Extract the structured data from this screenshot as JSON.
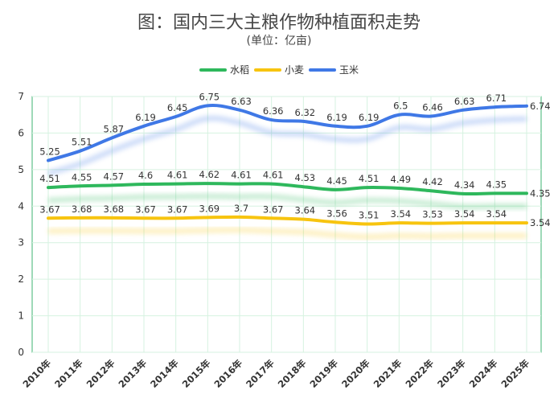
{
  "chart_data": {
    "type": "line",
    "title": "图：国内三大主粮作物种植面积走势",
    "subtitle": "(单位：亿亩)",
    "categories": [
      "2010年",
      "2011年",
      "2012年",
      "2013年",
      "2014年",
      "2015年",
      "2016年",
      "2017年",
      "2018年",
      "2019年",
      "2020年",
      "2021年",
      "2022年",
      "2023年",
      "2024年",
      "2025年"
    ],
    "ylim": [
      0,
      7
    ],
    "yticks": [
      "0",
      "1",
      "2",
      "3",
      "4",
      "5",
      "6",
      "7"
    ],
    "legend_position": "top-center",
    "series": [
      {
        "name": "水稻",
        "color": "#2eb85c",
        "values": [
          4.51,
          4.55,
          4.57,
          4.6,
          4.61,
          4.62,
          4.61,
          4.61,
          4.53,
          4.45,
          4.51,
          4.49,
          4.42,
          4.34,
          4.35,
          4.35
        ]
      },
      {
        "name": "小麦",
        "color": "#f7c40f",
        "values": [
          3.67,
          3.68,
          3.68,
          3.67,
          3.67,
          3.69,
          3.7,
          3.67,
          3.64,
          3.56,
          3.51,
          3.54,
          3.53,
          3.54,
          3.54,
          3.54
        ]
      },
      {
        "name": "玉米",
        "color": "#3f78e6",
        "values": [
          5.25,
          5.51,
          5.87,
          6.19,
          6.45,
          6.75,
          6.63,
          6.36,
          6.32,
          6.19,
          6.19,
          6.5,
          6.46,
          6.63,
          6.71,
          6.74
        ]
      }
    ],
    "data_labels": {
      "水稻": [
        "4.51",
        "4.55",
        "4.57",
        "4.6",
        "4.61",
        "4.62",
        "4.61",
        "4.61",
        "4.53",
        "4.45",
        "4.51",
        "4.49",
        "4.42",
        "4.34",
        "4.35",
        "4.35"
      ],
      "小麦": [
        "3.67",
        "3.68",
        "3.68",
        "3.67",
        "3.67",
        "3.69",
        "3.7",
        "3.67",
        "3.64",
        "3.56",
        "3.51",
        "3.54",
        "3.53",
        "3.54",
        "3.54",
        "3.54"
      ],
      "玉米": [
        "5.25",
        "5.51",
        "5.87",
        "6.19",
        "6.45",
        "6.75",
        "6.63",
        "6.36",
        "6.32",
        "6.19",
        "6.19",
        "6.5",
        "6.46",
        "6.63",
        "6.71",
        "6.74"
      ]
    }
  }
}
